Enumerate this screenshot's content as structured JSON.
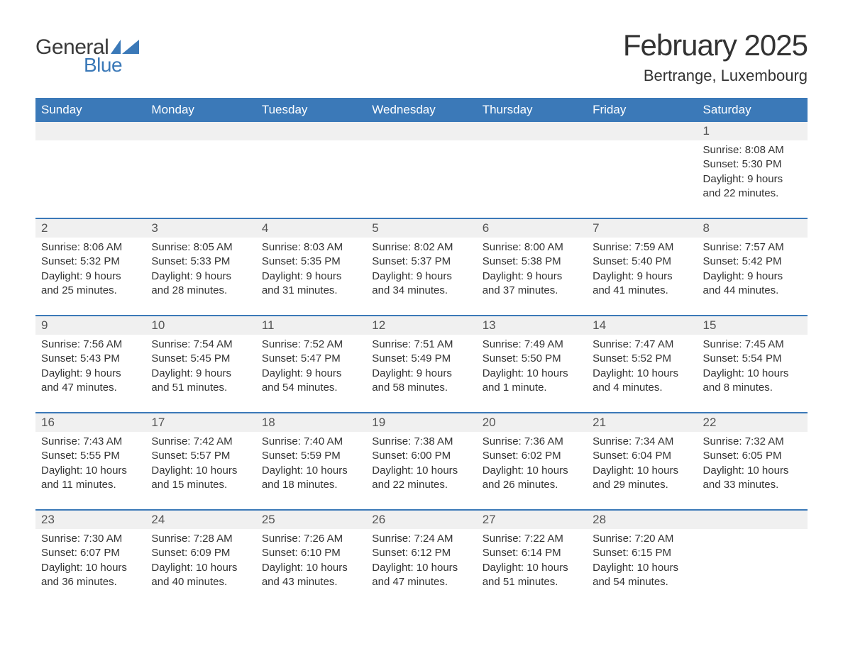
{
  "logo": {
    "word1": "General",
    "word2": "Blue",
    "word1_color": "#3a3a3a",
    "word2_color": "#3b79b8",
    "flag_color": "#3b79b8"
  },
  "title": "February 2025",
  "location": "Bertrange, Luxembourg",
  "colors": {
    "header_bg": "#3b79b8",
    "header_text": "#ffffff",
    "daynum_bg": "#f0f0f0",
    "text": "#333333",
    "separator": "#3b79b8",
    "page_bg": "#ffffff"
  },
  "typography": {
    "title_fontsize": 42,
    "location_fontsize": 22,
    "header_fontsize": 17,
    "daynum_fontsize": 17,
    "body_fontsize": 15,
    "font_family": "Arial"
  },
  "calendar": {
    "type": "table",
    "columns": [
      "Sunday",
      "Monday",
      "Tuesday",
      "Wednesday",
      "Thursday",
      "Friday",
      "Saturday"
    ],
    "weeks": [
      [
        null,
        null,
        null,
        null,
        null,
        null,
        {
          "day": "1",
          "sunrise": "8:08 AM",
          "sunset": "5:30 PM",
          "daylight": "9 hours and 22 minutes."
        }
      ],
      [
        {
          "day": "2",
          "sunrise": "8:06 AM",
          "sunset": "5:32 PM",
          "daylight": "9 hours and 25 minutes."
        },
        {
          "day": "3",
          "sunrise": "8:05 AM",
          "sunset": "5:33 PM",
          "daylight": "9 hours and 28 minutes."
        },
        {
          "day": "4",
          "sunrise": "8:03 AM",
          "sunset": "5:35 PM",
          "daylight": "9 hours and 31 minutes."
        },
        {
          "day": "5",
          "sunrise": "8:02 AM",
          "sunset": "5:37 PM",
          "daylight": "9 hours and 34 minutes."
        },
        {
          "day": "6",
          "sunrise": "8:00 AM",
          "sunset": "5:38 PM",
          "daylight": "9 hours and 37 minutes."
        },
        {
          "day": "7",
          "sunrise": "7:59 AM",
          "sunset": "5:40 PM",
          "daylight": "9 hours and 41 minutes."
        },
        {
          "day": "8",
          "sunrise": "7:57 AM",
          "sunset": "5:42 PM",
          "daylight": "9 hours and 44 minutes."
        }
      ],
      [
        {
          "day": "9",
          "sunrise": "7:56 AM",
          "sunset": "5:43 PM",
          "daylight": "9 hours and 47 minutes."
        },
        {
          "day": "10",
          "sunrise": "7:54 AM",
          "sunset": "5:45 PM",
          "daylight": "9 hours and 51 minutes."
        },
        {
          "day": "11",
          "sunrise": "7:52 AM",
          "sunset": "5:47 PM",
          "daylight": "9 hours and 54 minutes."
        },
        {
          "day": "12",
          "sunrise": "7:51 AM",
          "sunset": "5:49 PM",
          "daylight": "9 hours and 58 minutes."
        },
        {
          "day": "13",
          "sunrise": "7:49 AM",
          "sunset": "5:50 PM",
          "daylight": "10 hours and 1 minute."
        },
        {
          "day": "14",
          "sunrise": "7:47 AM",
          "sunset": "5:52 PM",
          "daylight": "10 hours and 4 minutes."
        },
        {
          "day": "15",
          "sunrise": "7:45 AM",
          "sunset": "5:54 PM",
          "daylight": "10 hours and 8 minutes."
        }
      ],
      [
        {
          "day": "16",
          "sunrise": "7:43 AM",
          "sunset": "5:55 PM",
          "daylight": "10 hours and 11 minutes."
        },
        {
          "day": "17",
          "sunrise": "7:42 AM",
          "sunset": "5:57 PM",
          "daylight": "10 hours and 15 minutes."
        },
        {
          "day": "18",
          "sunrise": "7:40 AM",
          "sunset": "5:59 PM",
          "daylight": "10 hours and 18 minutes."
        },
        {
          "day": "19",
          "sunrise": "7:38 AM",
          "sunset": "6:00 PM",
          "daylight": "10 hours and 22 minutes."
        },
        {
          "day": "20",
          "sunrise": "7:36 AM",
          "sunset": "6:02 PM",
          "daylight": "10 hours and 26 minutes."
        },
        {
          "day": "21",
          "sunrise": "7:34 AM",
          "sunset": "6:04 PM",
          "daylight": "10 hours and 29 minutes."
        },
        {
          "day": "22",
          "sunrise": "7:32 AM",
          "sunset": "6:05 PM",
          "daylight": "10 hours and 33 minutes."
        }
      ],
      [
        {
          "day": "23",
          "sunrise": "7:30 AM",
          "sunset": "6:07 PM",
          "daylight": "10 hours and 36 minutes."
        },
        {
          "day": "24",
          "sunrise": "7:28 AM",
          "sunset": "6:09 PM",
          "daylight": "10 hours and 40 minutes."
        },
        {
          "day": "25",
          "sunrise": "7:26 AM",
          "sunset": "6:10 PM",
          "daylight": "10 hours and 43 minutes."
        },
        {
          "day": "26",
          "sunrise": "7:24 AM",
          "sunset": "6:12 PM",
          "daylight": "10 hours and 47 minutes."
        },
        {
          "day": "27",
          "sunrise": "7:22 AM",
          "sunset": "6:14 PM",
          "daylight": "10 hours and 51 minutes."
        },
        {
          "day": "28",
          "sunrise": "7:20 AM",
          "sunset": "6:15 PM",
          "daylight": "10 hours and 54 minutes."
        },
        null
      ]
    ]
  },
  "labels": {
    "sunrise_prefix": "Sunrise: ",
    "sunset_prefix": "Sunset: ",
    "daylight_prefix": "Daylight: "
  }
}
